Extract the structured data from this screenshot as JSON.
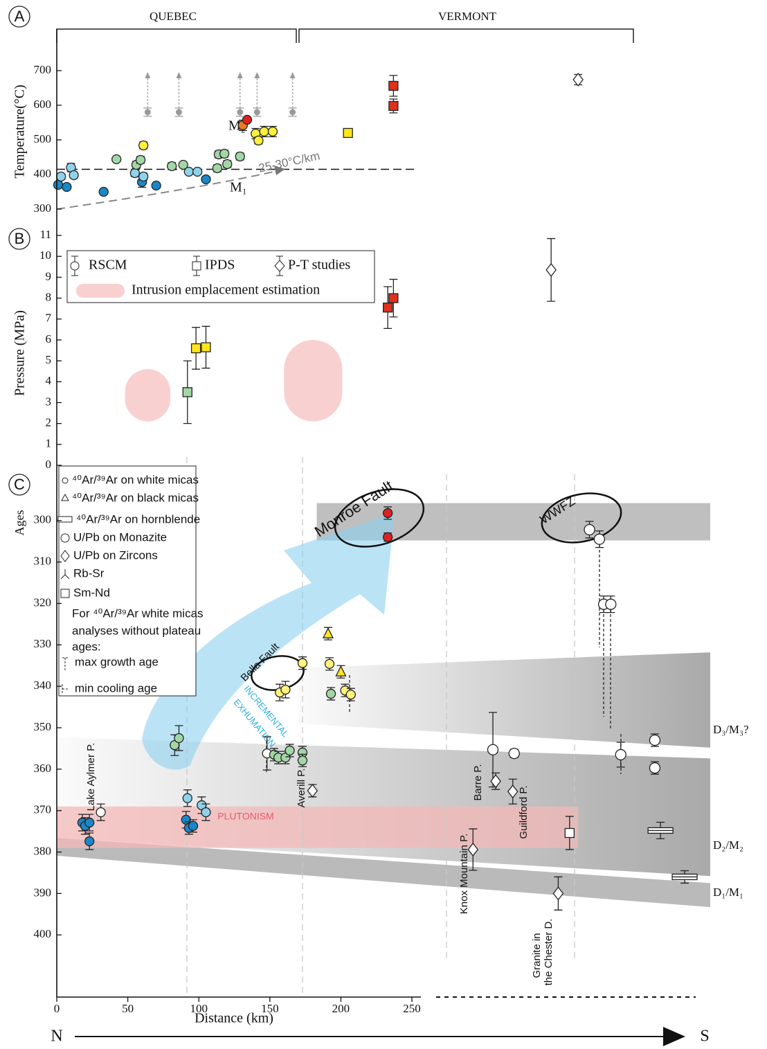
{
  "chart_data": [
    {
      "type": "scatter",
      "panel_label": "A",
      "ylabel": "Temperature(°C)",
      "ylim": [
        266,
        740
      ],
      "yticks": [
        300,
        400,
        500,
        600,
        700
      ],
      "xlim": [
        0,
        460
      ],
      "region_labels": [
        "QUEBEC",
        "VERMONT"
      ],
      "reference_line": 415,
      "annotations": [
        "M₂",
        "M₁",
        "25-30°C/km"
      ],
      "series": [
        {
          "marker": "circle",
          "color": "#1b87c9",
          "x": [
            1,
            7,
            33,
            60,
            70,
            105
          ],
          "values": [
            370,
            364,
            350,
            378,
            368,
            386
          ],
          "errors": [
            8,
            6,
            0,
            15,
            6,
            8
          ]
        },
        {
          "marker": "circle",
          "color": "#8fd3ea",
          "x": [
            3,
            10,
            12,
            55,
            61,
            93,
            99
          ],
          "values": [
            394,
            420,
            398,
            404,
            394,
            408,
            408
          ],
          "errors": [
            8,
            12,
            8,
            10,
            10,
            5,
            5
          ]
        },
        {
          "marker": "circle",
          "color": "#a3d6a6",
          "x": [
            42,
            56,
            59,
            81,
            89,
            113,
            114,
            118,
            120,
            129
          ],
          "values": [
            444,
            428,
            442,
            424,
            428,
            418,
            458,
            460,
            430,
            452
          ],
          "errors": [
            0,
            10,
            10,
            10,
            6,
            10,
            10,
            10,
            10,
            10
          ]
        },
        {
          "marker": "circle",
          "color": "#fff03a",
          "x": [
            61,
            140,
            142,
            146,
            152
          ],
          "values": [
            484,
            518,
            498,
            524,
            524
          ],
          "errors": [
            10,
            15,
            10,
            15,
            15
          ]
        },
        {
          "marker": "circle",
          "color": "#f07820",
          "x": [
            131
          ],
          "values": [
            542
          ],
          "errors": [
            15
          ]
        },
        {
          "marker": "circle",
          "color": "#e02020",
          "x": [
            134
          ],
          "values": [
            558
          ],
          "errors": [
            5
          ]
        },
        {
          "marker": "dot",
          "color": "#9a9a9a",
          "arrow": true,
          "x": [
            64,
            86,
            129,
            141,
            166
          ],
          "values": [
            580,
            580,
            580,
            580,
            580
          ],
          "errors": [
            12,
            12,
            12,
            12,
            12
          ]
        },
        {
          "marker": "square",
          "color": "#ffe61a",
          "x": [
            205
          ],
          "values": [
            520
          ],
          "errors": [
            12
          ]
        },
        {
          "marker": "square",
          "color": "#e03020",
          "x": [
            237,
            237
          ],
          "values": [
            656,
            598
          ],
          "errors": [
            30,
            20
          ]
        },
        {
          "marker": "diamond",
          "color": "#ffffff",
          "x": [
            367
          ],
          "values": [
            674
          ],
          "errors": [
            15
          ]
        }
      ]
    },
    {
      "type": "scatter",
      "panel_label": "B",
      "ylabel": "Pressure (MPa)",
      "ylim": [
        0,
        11.3
      ],
      "yticks": [
        0,
        1,
        2,
        3,
        4,
        5,
        6,
        7,
        8,
        9,
        10,
        11
      ],
      "xlim": [
        0,
        460
      ],
      "legend": [
        "RSCM",
        "IPDS",
        "P-T studies",
        "Intrusion emplacement estimation"
      ],
      "intrusions": [
        {
          "x": [
            48,
            80
          ],
          "range": [
            2.1,
            4.6
          ]
        },
        {
          "x": [
            160,
            201
          ],
          "range": [
            2.1,
            6.0
          ]
        }
      ],
      "series": [
        {
          "marker": "square",
          "color": "#a3d6a6",
          "x": [
            92
          ],
          "values": [
            3.5
          ],
          "errors": [
            1.5
          ]
        },
        {
          "marker": "square",
          "color": "#ffe61a",
          "x": [
            98,
            105
          ],
          "values": [
            5.6,
            5.65
          ],
          "errors": [
            1,
            1
          ]
        },
        {
          "marker": "square",
          "color": "#e03020",
          "x": [
            233,
            237
          ],
          "values": [
            7.55,
            8.0
          ],
          "errors": [
            1,
            0.9
          ]
        },
        {
          "marker": "diamond",
          "color": "#ffffff",
          "x": [
            348
          ],
          "values": [
            9.35
          ],
          "errors": [
            1.5
          ]
        }
      ]
    },
    {
      "type": "scatter",
      "panel_label": "C",
      "ylabel": "Ages",
      "xlabel": "Distance (km)",
      "xlim": [
        0,
        460
      ],
      "xticks": [
        0,
        50,
        100,
        150,
        200,
        250
      ],
      "ylim": [
        415,
        288
      ],
      "yticks": [
        300,
        310,
        320,
        330,
        340,
        350,
        360,
        370,
        380,
        390,
        400
      ],
      "legend": [
        "⁴⁰Ar/³⁹Ar on white micas",
        "⁴⁰Ar/³⁹Ar on black micas",
        "⁴⁰Ar/³⁹Ar on hornblende",
        "U/Pb on Monazite",
        "U/Pb on Zircons",
        "Rb-Sr",
        "Sm-Nd"
      ],
      "legend_note": [
        "For ⁴⁰Ar/³⁹Ar white micas",
        "analyses without plateau",
        "ages:"
      ],
      "legend_keys": [
        "max growth age",
        "min cooling age"
      ],
      "faults": [
        "Monroe Fault",
        "WWFZ",
        "Bella Fault"
      ],
      "exhumation": [
        "INCREMENTAL",
        "EXHUMATION"
      ],
      "plutons": [
        "Lake Aylmer P.",
        "Averill P.",
        "Barre P.",
        "Knox Mountain P.",
        "Guildford P."
      ],
      "chester": [
        "Granite in",
        "the Chester D."
      ],
      "directions": [
        "N",
        "S"
      ],
      "bands": [
        {
          "x": [
            183,
            460
          ],
          "top": [
            295.8,
            295.8
          ],
          "bottom": [
            304.8,
            304.8
          ],
          "color": "#b8b8b8"
        },
        {
          "label": "D₂/M₂",
          "x": [
            0,
            460
          ],
          "top": [
            352.3,
            357.4
          ],
          "bottom": [
            376.6,
            385.8
          ],
          "color": "#a0a0a0",
          "gradient": true
        },
        {
          "label": "D₃/M₃?",
          "x": [
            170,
            460
          ],
          "top": [
            335.6,
            331.8
          ],
          "bottom": [
            349,
            354.8
          ],
          "color": "#a0a0a0",
          "gradient": true
        },
        {
          "label": "D₁/M₁",
          "x": [
            0,
            460
          ],
          "top": [
            376.6,
            387.5
          ],
          "bottom": [
            380.9,
            393.3
          ],
          "color": "#a3a3a3"
        },
        {
          "label": "PLUTONISM",
          "x": [
            0,
            367
          ],
          "top": [
            369,
            369
          ],
          "bottom": [
            379,
            379
          ],
          "color": "#f4b8b8"
        }
      ],
      "series": [
        {
          "marker": "circle",
          "color": "#1b87c9",
          "x": [
            18,
            20,
            23,
            23,
            91,
            93,
            96
          ],
          "values": [
            372.9,
            373.7,
            372.9,
            377.4,
            372.2,
            374.2,
            373.7
          ],
          "errors": [
            2,
            2,
            2,
            2,
            2,
            1.5,
            1.5
          ]
        },
        {
          "marker": "circle",
          "color": "#ffffff",
          "x": [
            31,
            148
          ],
          "values": [
            370.4,
            356.2
          ],
          "errors": [
            2,
            4
          ]
        },
        {
          "marker": "circle",
          "color": "#8fd3ea",
          "x": [
            92,
            102,
            105
          ],
          "values": [
            367,
            368.7,
            370.4
          ],
          "errors": [
            2,
            2,
            2
          ]
        },
        {
          "marker": "circle",
          "color": "#a3d6a6",
          "x": [
            83,
            86,
            153,
            156,
            161,
            164,
            173,
            173,
            193
          ],
          "values": [
            354.2,
            352.5,
            356.5,
            357.2,
            357.2,
            355.5,
            356,
            357.9,
            341.8
          ],
          "errors": [
            2.5,
            3,
            1.5,
            1.5,
            1.5,
            1.5,
            1.5,
            1.5,
            1.5
          ]
        },
        {
          "marker": "circle",
          "color": "#fff27a",
          "x": [
            157,
            161,
            173,
            192,
            203,
            207
          ],
          "values": [
            341.5,
            340.8,
            334.4,
            334.6,
            341,
            342
          ],
          "errors": [
            2,
            2,
            1.5,
            1.5,
            1.5,
            1.5
          ]
        },
        {
          "marker": "circle",
          "color": "#e02020",
          "x": [
            233,
            233
          ],
          "values": [
            298.2,
            304
          ],
          "errors": [
            1.5,
            1
          ]
        },
        {
          "marker": "triangle",
          "color": "#ffe61a",
          "x": [
            191,
            200
          ],
          "values": [
            327.3,
            336.5
          ],
          "errors": [
            1.5,
            1.5
          ]
        },
        {
          "marker": "circle-large",
          "color": "#ffffff",
          "x": [
            375,
            382,
            385,
            390,
            307,
            322,
            397,
            421,
            421
          ],
          "values": [
            302.2,
            304.5,
            320.2,
            320.2,
            355.3,
            356.2,
            356.5,
            353,
            359.7
          ],
          "errors": [
            2,
            2,
            2,
            2,
            9,
            1,
            3,
            1.5,
            1.5
          ]
        },
        {
          "marker": "diamond",
          "color": "#ffffff",
          "x": [
            180,
            309,
            321,
            293,
            353
          ],
          "values": [
            365.2,
            362.9,
            365.4,
            379.4,
            390
          ],
          "errors": [
            1.5,
            2,
            3,
            5,
            4
          ]
        },
        {
          "marker": "square",
          "color": "#ffffff",
          "x": [
            361
          ],
          "values": [
            375.4
          ],
          "errors": [
            4
          ]
        },
        {
          "marker": "bar",
          "color": "#ffffff",
          "x": [
            425,
            442
          ],
          "values": [
            374.8,
            386
          ],
          "errors": [
            2,
            1.5
          ]
        }
      ]
    }
  ]
}
